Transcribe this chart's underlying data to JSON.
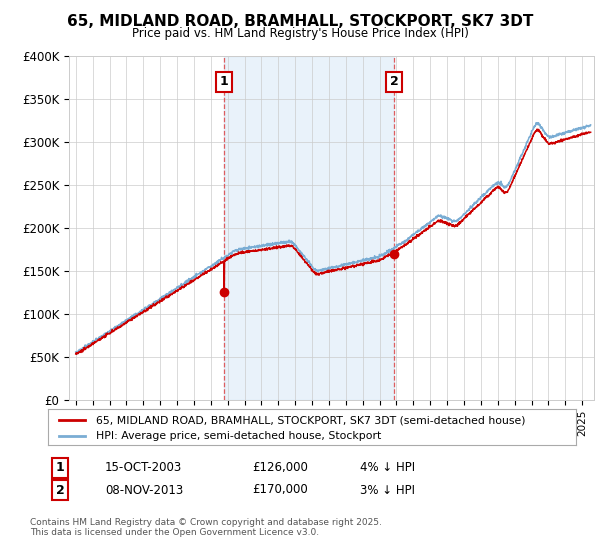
{
  "title": "65, MIDLAND ROAD, BRAMHALL, STOCKPORT, SK7 3DT",
  "subtitle": "Price paid vs. HM Land Registry's House Price Index (HPI)",
  "ylim": [
    0,
    400000
  ],
  "yticks": [
    0,
    50000,
    100000,
    150000,
    200000,
    250000,
    300000,
    350000,
    400000
  ],
  "ytick_labels": [
    "£0",
    "£50K",
    "£100K",
    "£150K",
    "£200K",
    "£250K",
    "£300K",
    "£350K",
    "£400K"
  ],
  "legend_line1": "65, MIDLAND ROAD, BRAMHALL, STOCKPORT, SK7 3DT (semi-detached house)",
  "legend_line2": "HPI: Average price, semi-detached house, Stockport",
  "purchase1_date": "15-OCT-2003",
  "purchase1_price": 126000,
  "purchase1_year": 2003.79,
  "purchase2_date": "08-NOV-2013",
  "purchase2_price": 170000,
  "purchase2_year": 2013.86,
  "footer": "Contains HM Land Registry data © Crown copyright and database right 2025.\nThis data is licensed under the Open Government Licence v3.0.",
  "line_color_red": "#cc0000",
  "line_color_blue": "#7aadd4",
  "vline_color": "#dd4444",
  "bg_color": "#ffffff",
  "highlight_color": "#ddeeff",
  "grid_color": "#cccccc"
}
